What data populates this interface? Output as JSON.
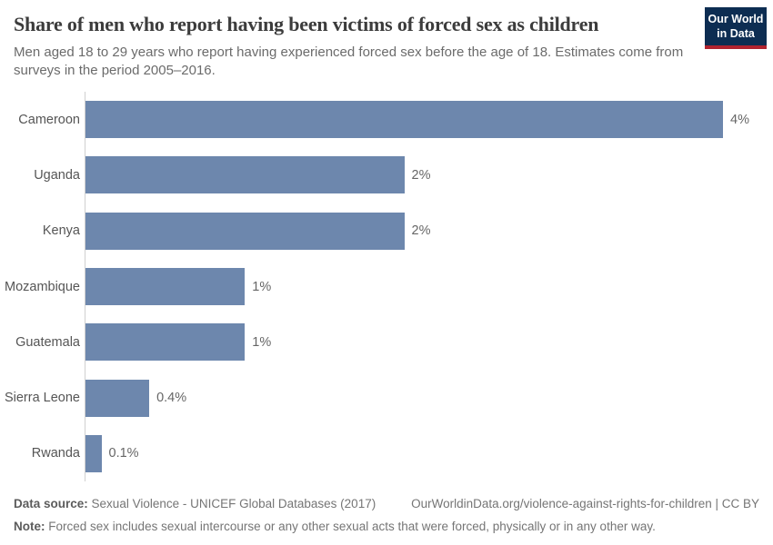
{
  "header": {
    "title": "Share of men who report having been victims of forced sex as children",
    "subtitle": "Men aged 18 to 29 years who report having experienced forced sex before the age of 18. Estimates come from surveys in the period 2005–2016.",
    "logo": {
      "line1": "Our World",
      "line2": "in Data"
    }
  },
  "chart_data": {
    "type": "bar",
    "orientation": "horizontal",
    "title": "Share of men who report having been victims of forced sex as children",
    "categories": [
      "Cameroon",
      "Uganda",
      "Kenya",
      "Mozambique",
      "Guatemala",
      "Sierra Leone",
      "Rwanda"
    ],
    "values": [
      4,
      2,
      2,
      1,
      1,
      0.4,
      0.1
    ],
    "value_labels": [
      "4%",
      "2%",
      "2%",
      "1%",
      "1%",
      "0.4%",
      "0.1%"
    ],
    "xlim": [
      0,
      4
    ],
    "xlabel": "",
    "ylabel": "",
    "grid": false,
    "legend": "none",
    "bar_color": "#6d87ad"
  },
  "footer": {
    "data_source_label": "Data source:",
    "data_source_value": "Sexual Violence - UNICEF Global Databases (2017)",
    "attribution": "OurWorldinData.org/violence-against-rights-for-children | CC BY",
    "note_label": "Note:",
    "note_value": "Forced sex includes sexual intercourse or any other sexual acts that were forced, physically or in any other way."
  },
  "colors": {
    "bar": "#6d87ad",
    "axis": "#d0d0d0",
    "logo_bg": "#0d2d52",
    "logo_accent": "#b0232f",
    "title_text": "#3c3c3c",
    "body_text": "#6b6b6b"
  }
}
